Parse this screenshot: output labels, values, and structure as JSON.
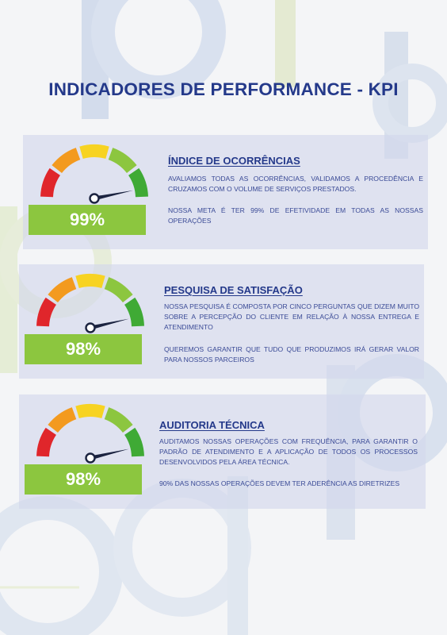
{
  "title": "INDICADORES DE PERFORMANCE - KPI",
  "gauge_colors": {
    "red": "#e0262b",
    "orange": "#f39a1f",
    "yellow": "#f7d322",
    "light_green": "#8cc63f",
    "green": "#3faa35",
    "needle": "#1b2340",
    "score_bar": "#8cc63f"
  },
  "indicators": [
    {
      "heading": "ÍNDICE DE OCORRÊNCIAS",
      "paragraph_1": "AVALIAMOS TODAS AS OCORRÊNCIAS, VALIDAMOS A PROCEDÊNCIA E CRUZAMOS COM O VOLUME DE SERVIÇOS PRESTADOS.",
      "paragraph_2": "NOSSA META É TER 99% DE EFETIVIDADE EM TODAS AS NOSSAS OPERAÇÕES",
      "score": "99%",
      "gauge_level": 0.99
    },
    {
      "heading": "PESQUISA DE SATISFAÇÃO",
      "paragraph_1": "NOSSA PESQUISA É COMPOSTA POR CINCO PERGUNTAS QUE DIZEM MUITO SOBRE A PERCEPÇÃO DO CLIENTE EM RELAÇÃO À NOSSA ENTREGA E ATENDIMENTO",
      "paragraph_2": "QUEREMOS GARANTIR QUE TUDO QUE PRODUZIMOS IRÁ GERAR VALOR PARA NOSSOS PARCEIROS",
      "score": "98%",
      "gauge_level": 0.98
    },
    {
      "heading": "AUDITORIA TÉCNICA",
      "paragraph_1": "AUDITAMOS NOSSAS OPERAÇÕES COM FREQUÊNCIA, PARA GARANTIR O PADRÃO DE ATENDIMENTO E A APLICAÇÃO DE TODOS OS PROCESSOS DESENVOLVIDOS PELA ÁREA TÉCNICA.",
      "paragraph_2": "90% DAS NOSSAS OPERAÇÕES DEVEM TER ADERÊNCIA AS DIRETRIZES",
      "score": "98%",
      "gauge_level": 0.98
    }
  ]
}
